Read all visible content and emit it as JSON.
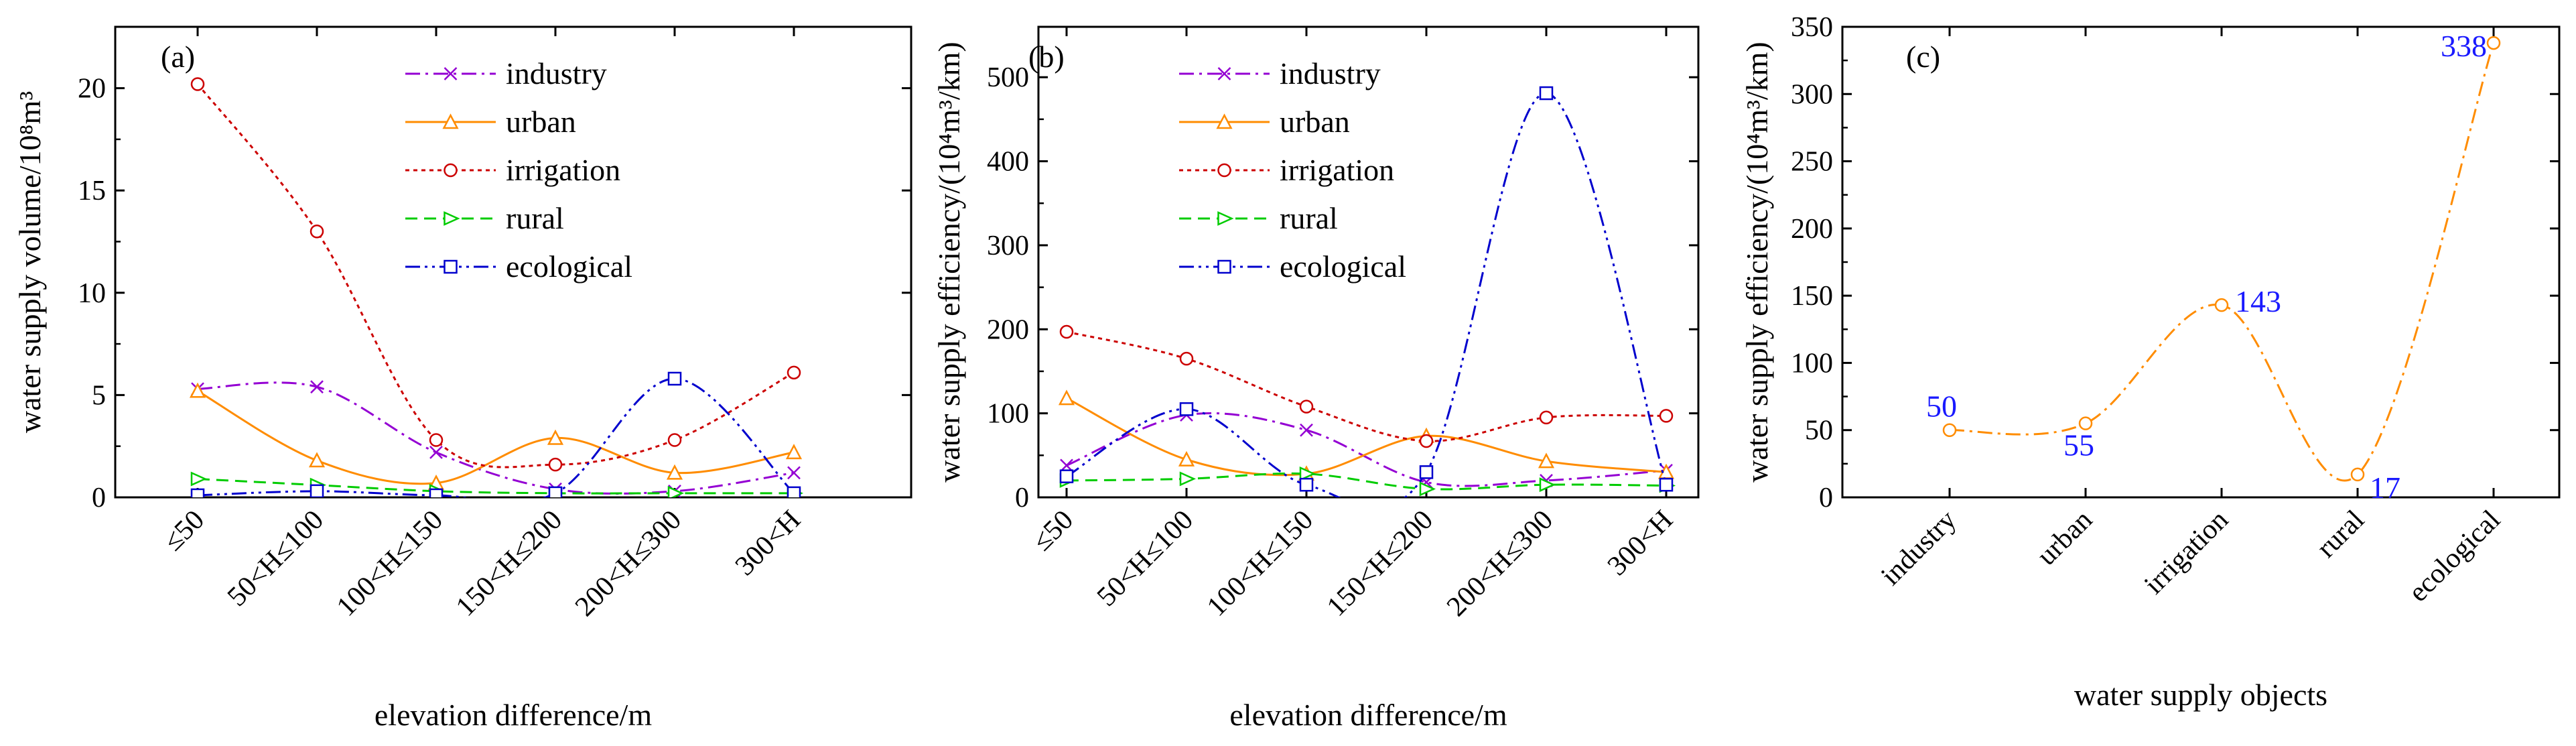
{
  "chart_data": [
    {
      "type": "line",
      "panel_label": "(a)",
      "categories": [
        "≤50",
        "50<H≤100",
        "100<H≤150",
        "150<H≤200",
        "200<H≤300",
        "300<H"
      ],
      "xlabel": "elevation difference/m",
      "ylabel": "water supply volume/10⁸m³",
      "ylim": [
        0,
        23
      ],
      "yticks": [
        0,
        5,
        10,
        15,
        20
      ],
      "legend_position": "top-center",
      "series": [
        {
          "name": "industry",
          "color": "#9400d3",
          "marker": "x",
          "dash": "dashdot",
          "values": [
            5.3,
            5.4,
            2.2,
            0.4,
            0.3,
            1.2
          ]
        },
        {
          "name": "urban",
          "color": "#ff8c00",
          "marker": "triangle",
          "dash": "solid",
          "values": [
            5.2,
            1.8,
            0.7,
            2.9,
            1.2,
            2.2
          ]
        },
        {
          "name": "irrigation",
          "color": "#cc0000",
          "marker": "circle",
          "dash": "dot",
          "values": [
            20.2,
            13.0,
            2.8,
            1.6,
            2.8,
            6.1
          ]
        },
        {
          "name": "rural",
          "color": "#00cc00",
          "marker": "triangle-right",
          "dash": "dash",
          "values": [
            0.9,
            0.6,
            0.3,
            0.2,
            0.2,
            0.2
          ]
        },
        {
          "name": "ecological",
          "color": "#0000cd",
          "marker": "square",
          "dash": "dashdotdot",
          "values": [
            0.1,
            0.3,
            0.1,
            0.2,
            5.8,
            0.2
          ]
        }
      ]
    },
    {
      "type": "line",
      "panel_label": "(b)",
      "categories": [
        "≤50",
        "50<H≤100",
        "100<H≤150",
        "150<H≤200",
        "200<H≤300",
        "300<H"
      ],
      "xlabel": "elevation difference/m",
      "ylabel": "water supply efficiency/(10⁴m³/km)",
      "ylim": [
        0,
        560
      ],
      "yticks": [
        0,
        100,
        200,
        300,
        400,
        500
      ],
      "legend_position": "top-center",
      "series": [
        {
          "name": "industry",
          "color": "#9400d3",
          "marker": "x",
          "dash": "dashdot",
          "values": [
            38,
            98,
            80,
            18,
            20,
            32
          ]
        },
        {
          "name": "urban",
          "color": "#ff8c00",
          "marker": "triangle",
          "dash": "solid",
          "values": [
            118,
            45,
            28,
            73,
            43,
            30
          ]
        },
        {
          "name": "irrigation",
          "color": "#cc0000",
          "marker": "circle",
          "dash": "dot",
          "values": [
            197,
            165,
            108,
            67,
            95,
            97
          ]
        },
        {
          "name": "rural",
          "color": "#00cc00",
          "marker": "triangle-right",
          "dash": "dash",
          "values": [
            20,
            22,
            28,
            10,
            15,
            14
          ]
        },
        {
          "name": "ecological",
          "color": "#0000cd",
          "marker": "square",
          "dash": "dashdotdot",
          "values": [
            25,
            105,
            15,
            30,
            481,
            15
          ]
        }
      ]
    },
    {
      "type": "line",
      "panel_label": "(c)",
      "categories": [
        "industry",
        "urban",
        "irrigation",
        "rural",
        "ecological"
      ],
      "xlabel": "water supply objects",
      "ylabel": "water supply efficiency/(10⁴m³/km)",
      "ylim": [
        0,
        350
      ],
      "yticks": [
        0,
        50,
        100,
        150,
        200,
        250,
        300,
        350
      ],
      "series": [
        {
          "name": "water supply efficiency",
          "color": "#ff8c00",
          "marker": "circle",
          "dash": "dashdot",
          "values": [
            50,
            55,
            143,
            17,
            338
          ],
          "labels": [
            "50",
            "55",
            "143",
            "17",
            "338"
          ]
        }
      ]
    }
  ]
}
